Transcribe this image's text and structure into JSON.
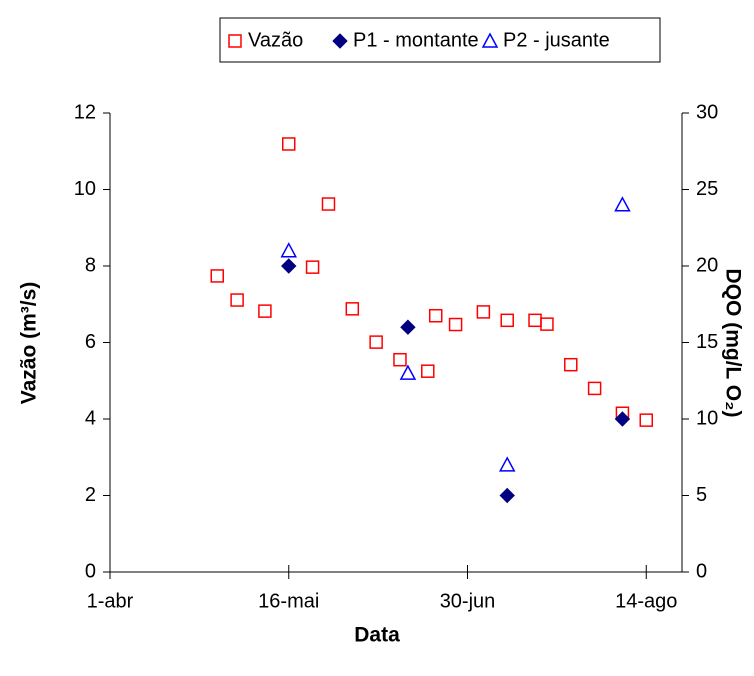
{
  "chart_data": {
    "type": "scatter",
    "xlabel": "Data",
    "ylabel": "Vazão (m³/s)",
    "y2label": "DQO (mg/L O₂)",
    "xlim": [
      91,
      235
    ],
    "xticks": [
      {
        "value": 91,
        "label": "1-abr"
      },
      {
        "value": 136,
        "label": "16-mai"
      },
      {
        "value": 181,
        "label": "30-jun"
      },
      {
        "value": 226,
        "label": "14-ago"
      }
    ],
    "ylim": [
      0,
      12
    ],
    "yticks": [
      0,
      2,
      4,
      6,
      8,
      10,
      12
    ],
    "y2lim": [
      0,
      30
    ],
    "y2ticks": [
      0,
      5,
      10,
      15,
      20,
      25,
      30
    ],
    "grid": false,
    "legend": "top",
    "series": [
      {
        "name": "Vazão",
        "color": "#ff0000",
        "marker": "square",
        "axis": "y",
        "x": [
          118,
          123,
          130,
          136,
          142,
          146,
          152,
          158,
          164,
          171,
          173,
          178,
          185,
          191,
          198,
          201,
          207,
          213,
          220,
          226
        ],
        "values": [
          7.74,
          7.11,
          6.82,
          11.19,
          7.97,
          9.62,
          6.88,
          6.01,
          5.55,
          5.25,
          6.7,
          6.47,
          6.8,
          6.58,
          6.58,
          6.48,
          5.42,
          4.8,
          4.15,
          3.97
        ]
      },
      {
        "name": "P1 - montante",
        "color": "#000080",
        "marker": "diamond",
        "axis": "y2",
        "x": [
          136,
          166,
          191,
          220
        ],
        "values": [
          20,
          16,
          5,
          10
        ]
      },
      {
        "name": "P2 - jusante",
        "color": "#0000ff",
        "marker": "triangle",
        "axis": "y2",
        "x": [
          136,
          166,
          191,
          220
        ],
        "values": [
          21,
          13,
          7,
          24
        ]
      }
    ]
  }
}
